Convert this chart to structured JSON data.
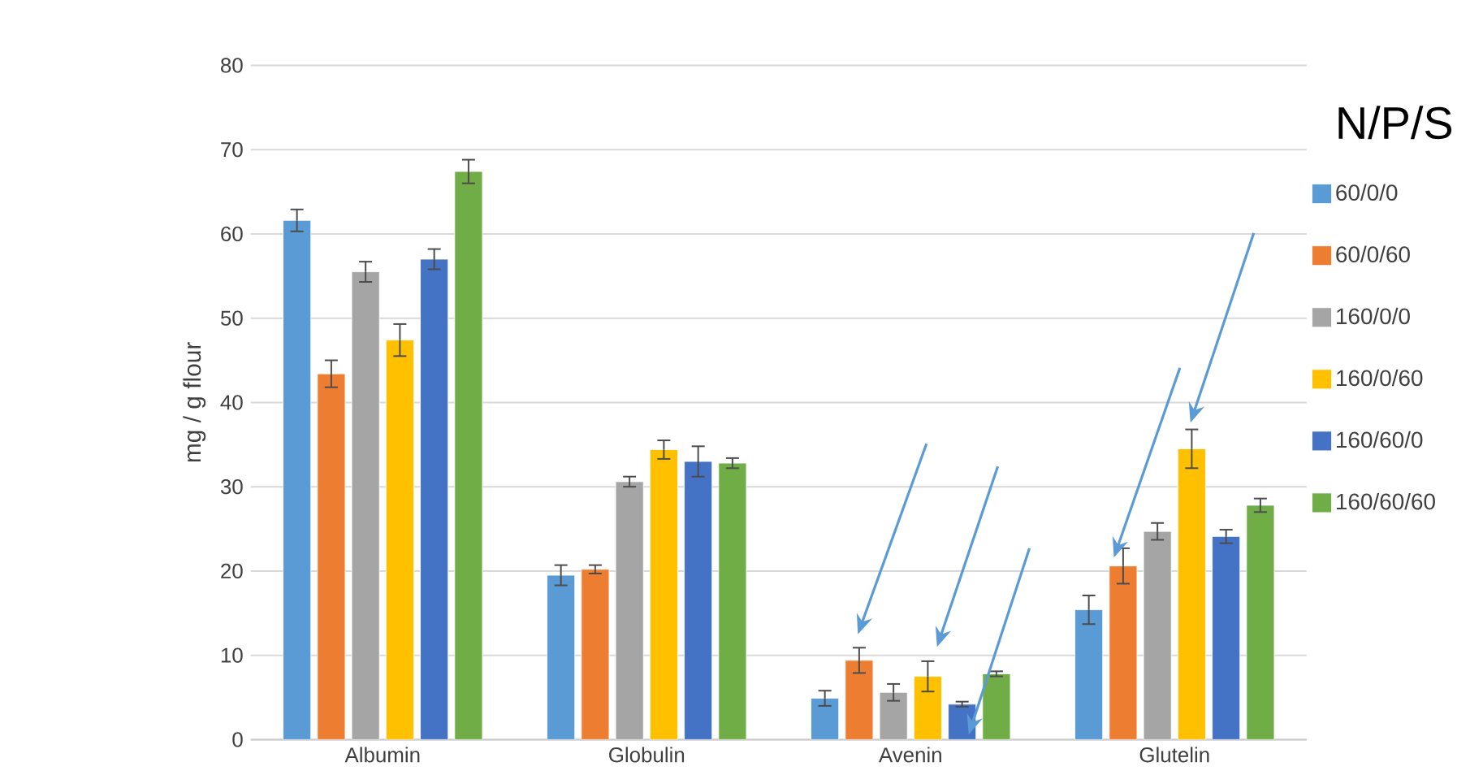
{
  "chart_data": {
    "type": "bar",
    "ylabel": "mg / g flour",
    "legend_title": "N/P/S",
    "categories": [
      "Albumin",
      "Globulin",
      "Avenin",
      "Glutelin"
    ],
    "series": [
      {
        "name": "60/0/0",
        "color": "#5b9bd5",
        "values": [
          61.6,
          19.5,
          4.9,
          15.4
        ],
        "errors": [
          1.3,
          1.2,
          0.9,
          1.7
        ]
      },
      {
        "name": "60/0/60",
        "color": "#ed7d31",
        "values": [
          43.4,
          20.2,
          9.4,
          20.6
        ],
        "errors": [
          1.6,
          0.5,
          1.5,
          2.1
        ]
      },
      {
        "name": "160/0/0",
        "color": "#a5a5a5",
        "values": [
          55.5,
          30.6,
          5.6,
          24.7
        ],
        "errors": [
          1.2,
          0.6,
          1.0,
          1.0
        ]
      },
      {
        "name": "160/0/60",
        "color": "#ffc000",
        "values": [
          47.4,
          34.4,
          7.5,
          34.5
        ],
        "errors": [
          1.9,
          1.1,
          1.8,
          2.3
        ]
      },
      {
        "name": "160/60/0",
        "color": "#4472c4",
        "values": [
          57.0,
          33.0,
          4.2,
          24.1
        ],
        "errors": [
          1.2,
          1.8,
          0.3,
          0.8
        ]
      },
      {
        "name": "160/60/60",
        "color": "#70ad47",
        "values": [
          67.4,
          32.8,
          7.8,
          27.8
        ],
        "errors": [
          1.4,
          0.6,
          0.3,
          0.8
        ]
      }
    ],
    "ylim": [
      0,
      80
    ],
    "yticks": [
      0,
      10,
      20,
      30,
      40,
      50,
      60,
      70,
      80
    ],
    "grid": "y",
    "legend": "right"
  }
}
